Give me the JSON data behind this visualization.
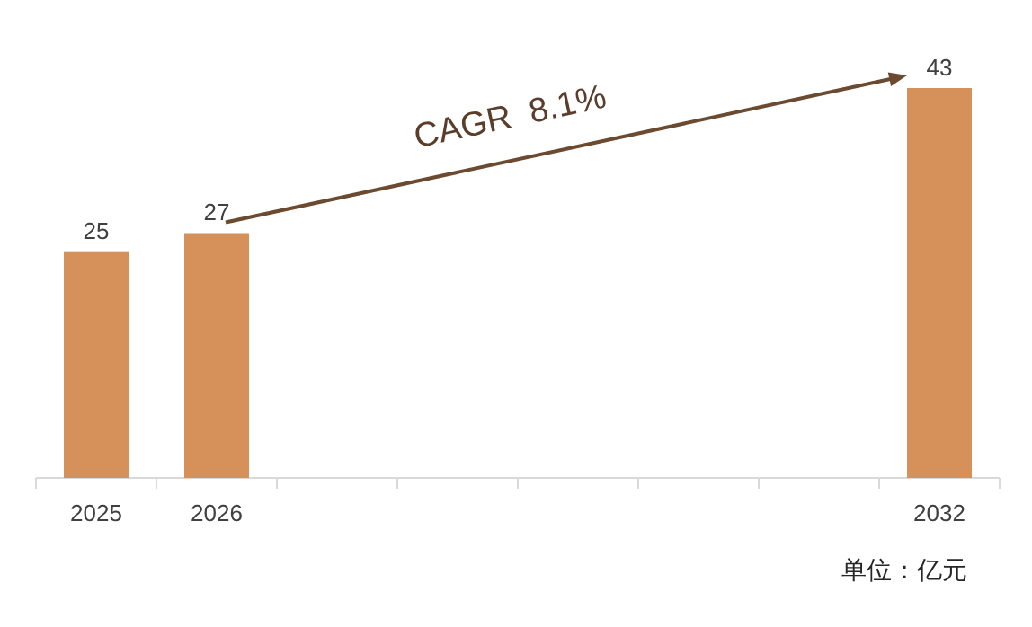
{
  "chart_data": {
    "type": "bar",
    "categories": [
      "2025",
      "2026",
      null,
      null,
      null,
      null,
      null,
      "2032"
    ],
    "values": [
      25,
      27,
      null,
      null,
      null,
      null,
      null,
      43
    ],
    "color": "#d6915a",
    "data_labels": true,
    "annotations": [
      "CAGR  8.1%",
      "单位：亿元"
    ]
  }
}
